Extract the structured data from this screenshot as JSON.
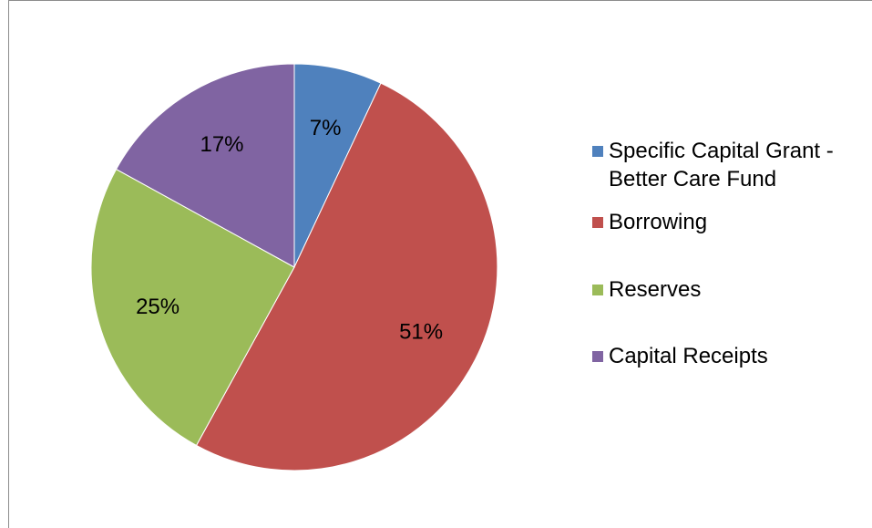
{
  "chart_data": {
    "type": "pie",
    "title": "",
    "start_angle_deg": 0,
    "direction": "clockwise",
    "slices": [
      {
        "label": "Specific Capital Grant - Better Care Fund",
        "value": 7,
        "display": "7%",
        "color": "#4F81BD"
      },
      {
        "label": "Borrowing",
        "value": 51,
        "display": "51%",
        "color": "#C0504D"
      },
      {
        "label": "Reserves",
        "value": 25,
        "display": "25%",
        "color": "#9BBB59"
      },
      {
        "label": "Capital Receipts",
        "value": 17,
        "display": "17%",
        "color": "#8064A2"
      }
    ],
    "legend_position": "right",
    "data_labels": "inside"
  }
}
